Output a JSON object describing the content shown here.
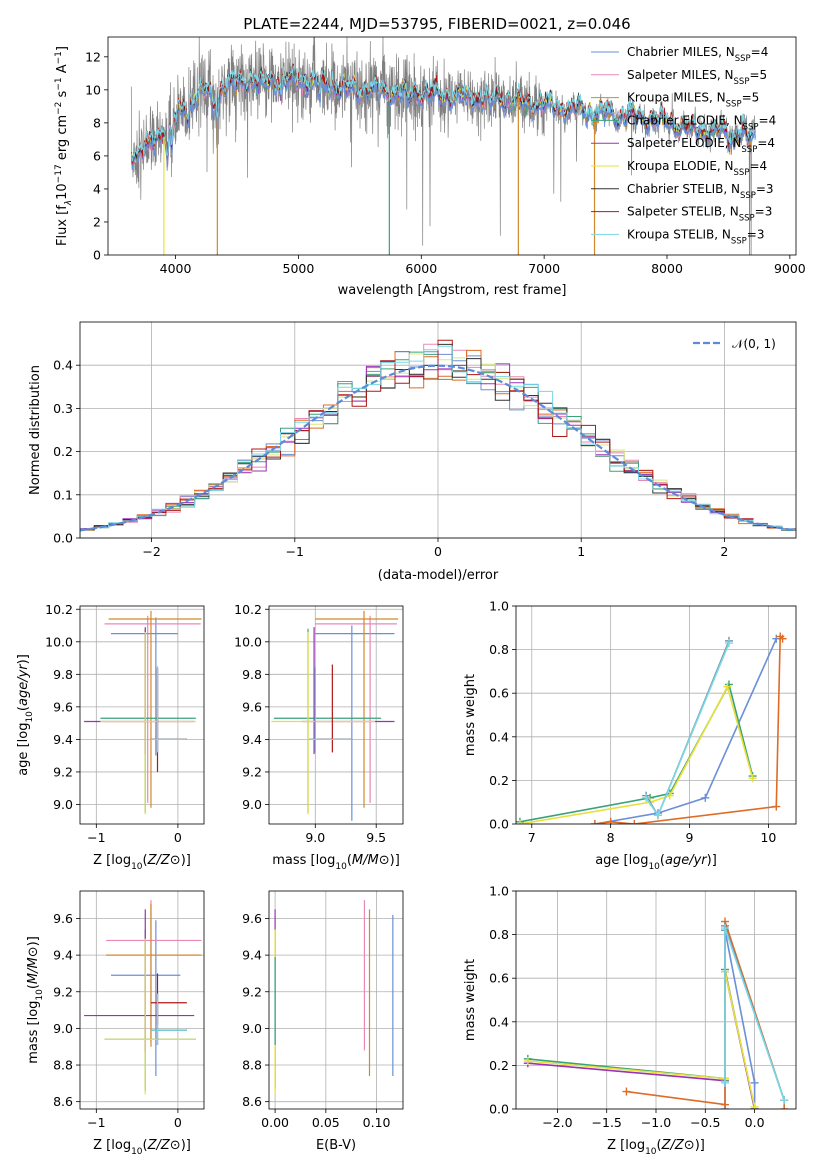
{
  "figure": {
    "title": "PLATE=2244, MJD=53795, FIBERID=0021, z=0.046"
  },
  "legend_spectrum": [
    {
      "label": "Chabrier MILES, N",
      "sub": "SSP",
      "suffix": "=4",
      "color": "#6b8fd8"
    },
    {
      "label": "Salpeter MILES, N",
      "sub": "SSP",
      "suffix": "=5",
      "color": "#e888b8"
    },
    {
      "label": "Kroupa MILES, N",
      "sub": "SSP",
      "suffix": "=5",
      "color": "#d08a2a"
    },
    {
      "label": "Chabrier ELODIE, N",
      "sub": "SSP",
      "suffix": "=4",
      "color": "#3aa37a"
    },
    {
      "label": "Salpeter ELODIE, N",
      "sub": "SSP",
      "suffix": "=4",
      "color": "#9932b8"
    },
    {
      "label": "Kroupa ELODIE, N",
      "sub": "SSP",
      "suffix": "=4",
      "color": "#e8e03a"
    },
    {
      "label": "Chabrier STELIB, N",
      "sub": "SSP",
      "suffix": "=3",
      "color": "#333333"
    },
    {
      "label": "Salpeter STELIB, N",
      "sub": "SSP",
      "suffix": "=3",
      "color": "#b01818"
    },
    {
      "label": "Kroupa STELIB, N",
      "sub": "SSP",
      "suffix": "=3",
      "color": "#78d8e8"
    }
  ],
  "legend_normal": {
    "label": "𝒩(0, 1)",
    "color": "#5b8bd9"
  },
  "chart_data": [
    {
      "id": "spectrum",
      "type": "line",
      "title": "PLATE=2244, MJD=53795, FIBERID=0021, z=0.046",
      "xlabel": "wavelength [Angstrom, rest frame]",
      "ylabel": "Flux [f",
      "ylabel_parts": [
        "Flux [f",
        "λ",
        "10",
        "−17",
        " erg cm",
        "−2",
        " s",
        "−1",
        " A",
        "−1",
        "]"
      ],
      "xlim": [
        3450,
        9050
      ],
      "ylim": [
        0,
        13.2
      ],
      "xticks": [
        4000,
        5000,
        6000,
        7000,
        8000,
        9000
      ],
      "xtick_labels": [
        "4000",
        "5000",
        "6000",
        "7000",
        "8000",
        "9000"
      ],
      "yticks": [
        0,
        2,
        4,
        6,
        8,
        10,
        12
      ],
      "ytick_labels": [
        "0",
        "2",
        "4",
        "6",
        "8",
        "10",
        "12"
      ],
      "grid": false,
      "legend": "top-right",
      "data_trend": {
        "x": [
          3650,
          3700,
          3800,
          3900,
          4000,
          4100,
          4200,
          4300,
          4400,
          4500,
          4600,
          4700,
          4800,
          4900,
          5000,
          5200,
          5400,
          5600,
          5800,
          6000,
          6200,
          6400,
          6600,
          6800,
          7000,
          7200,
          7400,
          7600,
          7800,
          8000,
          8200,
          8400,
          8600,
          8700
        ],
        "y": [
          6.2,
          6.1,
          6.6,
          7.6,
          8.3,
          9.1,
          9.9,
          9.8,
          10.2,
          10.4,
          10.6,
          10.3,
          10.6,
          10.5,
          10.6,
          10.4,
          10.0,
          10.0,
          9.8,
          9.8,
          9.6,
          9.5,
          9.5,
          9.2,
          9.1,
          8.9,
          8.6,
          8.5,
          8.3,
          8.1,
          7.6,
          7.5,
          7.4,
          7.2
        ]
      },
      "series_names": [
        "data",
        "Chabrier MILES",
        "Salpeter MILES",
        "Kroupa MILES",
        "Chabrier ELODIE",
        "Salpeter ELODIE",
        "Kroupa ELODIE",
        "Chabrier STELIB",
        "Salpeter STELIB",
        "Kroupa STELIB"
      ]
    },
    {
      "id": "residuals",
      "type": "step",
      "xlabel": "(data-model)/error",
      "ylabel": "Normed distribution",
      "xlim": [
        -2.5,
        2.5
      ],
      "ylim": [
        0,
        0.5
      ],
      "xticks": [
        -2,
        -1,
        0,
        1,
        2
      ],
      "xtick_labels": [
        "−2",
        "−1",
        "0",
        "1",
        "2"
      ],
      "yticks": [
        0.0,
        0.1,
        0.2,
        0.3,
        0.4
      ],
      "ytick_labels": [
        "0.0",
        "0.1",
        "0.2",
        "0.3",
        "0.4"
      ],
      "grid": true,
      "legend": "top-right",
      "bin_width": 0.1,
      "bins_start": -2.5,
      "normal_curve": {
        "mean": 0,
        "sigma": 1
      }
    },
    {
      "id": "age-vs-Z",
      "type": "errorbar",
      "xlabel": "Z [log10(Z/Z⊙)]",
      "ylabel": "age  [log10(age/yr)]",
      "xlim": [
        -1.2,
        0.32
      ],
      "ylim": [
        8.88,
        10.22
      ],
      "xticks": [
        -1,
        0
      ],
      "xtick_labels": [
        "−1",
        "0"
      ],
      "yticks": [
        9.0,
        9.2,
        9.4,
        9.6,
        9.8,
        10.0,
        10.2
      ],
      "ytick_labels": [
        "9.0",
        "9.2",
        "9.4",
        "9.6",
        "9.8",
        "10.0",
        "10.2"
      ],
      "grid": true,
      "points": [
        {
          "x": -0.27,
          "y": 10.05,
          "xerr": [
            0.55,
            0.27
          ],
          "yerr": [
            0.75,
            0.1
          ],
          "color": "#6b8fd8"
        },
        {
          "x": -0.37,
          "y": 10.11,
          "xerr": [
            0.53,
            0.65
          ],
          "yerr": [
            1.1,
            0.05
          ],
          "color": "#e888b8"
        },
        {
          "x": -0.33,
          "y": 10.14,
          "xerr": [
            0.52,
            0.62
          ],
          "yerr": [
            1.16,
            0.05
          ],
          "color": "#d08a2a"
        },
        {
          "x": -0.4,
          "y": 9.53,
          "xerr": [
            0.55,
            0.62
          ],
          "yerr": [
            0.58,
            0.55
          ],
          "color": "#3aa37a"
        },
        {
          "x": -0.4,
          "y": 9.51,
          "xerr": [
            0.75,
            0.6
          ],
          "yerr": [
            0.2,
            0.58
          ],
          "color": "#9932b8"
        },
        {
          "x": -0.4,
          "y": 9.51,
          "xerr": [
            0.55,
            0.62
          ],
          "yerr": [
            0.57,
            0.55
          ],
          "color": "#e8e03a"
        },
        {
          "x": -0.25,
          "y": 9.4,
          "xerr": [
            0.08,
            0.36
          ],
          "yerr": [
            0.08,
            0.44
          ],
          "color": "#333333"
        },
        {
          "x": -0.25,
          "y": 9.4,
          "xerr": [
            0.08,
            0.36
          ],
          "yerr": [
            0.2,
            0.44
          ],
          "color": "#b01818"
        },
        {
          "x": -0.25,
          "y": 9.4,
          "xerr": [
            0.08,
            0.36
          ],
          "yerr": [
            0.08,
            0.45
          ],
          "color": "#78d8e8"
        }
      ]
    },
    {
      "id": "age-vs-mass",
      "type": "errorbar",
      "xlabel": "mass [log10(M/M⊙)]",
      "ylabel": "",
      "xlim": [
        8.62,
        9.72
      ],
      "ylim": [
        8.88,
        10.22
      ],
      "xticks": [
        9.0,
        9.5
      ],
      "xtick_labels": [
        "9.0",
        "9.5"
      ],
      "yticks": [
        9.0,
        9.2,
        9.4,
        9.6,
        9.8,
        10.0,
        10.2
      ],
      "ytick_labels": [
        "9.0",
        "9.2",
        "9.4",
        "9.6",
        "9.8",
        "10.0",
        "10.2"
      ],
      "grid": true,
      "points": [
        {
          "x": 9.3,
          "y": 10.05,
          "xerr": [
            0.3,
            0.35
          ],
          "yerr": [
            1.15,
            0.05
          ],
          "color": "#6b8fd8"
        },
        {
          "x": 9.45,
          "y": 10.11,
          "xerr": [
            0.45,
            0.22
          ],
          "yerr": [
            1.1,
            0.05
          ],
          "color": "#e888b8"
        },
        {
          "x": 9.4,
          "y": 10.14,
          "xerr": [
            0.4,
            0.28
          ],
          "yerr": [
            1.16,
            0.05
          ],
          "color": "#d08a2a"
        },
        {
          "x": 8.94,
          "y": 9.53,
          "xerr": [
            0.28,
            0.6
          ],
          "yerr": [
            0.58,
            0.55
          ],
          "color": "#3aa37a"
        },
        {
          "x": 8.99,
          "y": 9.51,
          "xerr": [
            0.1,
            0.66
          ],
          "yerr": [
            0.2,
            0.58
          ],
          "color": "#9932b8"
        },
        {
          "x": 8.94,
          "y": 9.51,
          "xerr": [
            0.3,
            0.55
          ],
          "yerr": [
            0.57,
            0.55
          ],
          "color": "#e8e03a"
        },
        {
          "x": 9.0,
          "y": 9.4,
          "xerr": [
            0.05,
            0.3
          ],
          "yerr": [
            0.08,
            0.44
          ],
          "color": "#333333"
        },
        {
          "x": 9.14,
          "y": 9.4,
          "xerr": [
            0.12,
            0.16
          ],
          "yerr": [
            0.08,
            0.46
          ],
          "color": "#b01818"
        },
        {
          "x": 9.0,
          "y": 9.4,
          "xerr": [
            0.05,
            0.3
          ],
          "yerr": [
            0.08,
            0.45
          ],
          "color": "#78d8e8"
        }
      ]
    },
    {
      "id": "mass-weight-vs-age",
      "type": "line",
      "xlabel": "age  [log10(age/yr)]",
      "ylabel": "mass weight",
      "xlim": [
        6.8,
        10.35
      ],
      "ylim": [
        0,
        1.0
      ],
      "xticks": [
        7,
        8,
        9,
        10
      ],
      "xtick_labels": [
        "7",
        "8",
        "9",
        "10"
      ],
      "yticks": [
        0.0,
        0.2,
        0.4,
        0.6,
        0.8,
        1.0
      ],
      "ytick_labels": [
        "0.0",
        "0.2",
        "0.4",
        "0.6",
        "0.8",
        "1.0"
      ],
      "grid": true,
      "series": [
        {
          "color": "#6b8fd8",
          "x": [
            7.8,
            8.6,
            9.2,
            10.1
          ],
          "y": [
            0.0,
            0.05,
            0.12,
            0.85
          ]
        },
        {
          "color": "#e06b25",
          "x": [
            7.8,
            8.0,
            8.3,
            10.1,
            10.15,
            10.18
          ],
          "y": [
            0.0,
            0.01,
            0.0,
            0.08,
            0.86,
            0.85
          ]
        },
        {
          "color": "#3aa37a",
          "x": [
            6.85,
            8.5,
            8.75,
            9.5,
            9.8
          ],
          "y": [
            0.01,
            0.12,
            0.14,
            0.64,
            0.22
          ]
        },
        {
          "color": "#e8e03a",
          "x": [
            6.85,
            8.5,
            8.75,
            9.48,
            9.8
          ],
          "y": [
            0.0,
            0.1,
            0.13,
            0.63,
            0.21
          ]
        },
        {
          "color": "#7a8c9a",
          "x": [
            8.45,
            8.6,
            9.5
          ],
          "y": [
            0.13,
            0.04,
            0.84
          ]
        },
        {
          "color": "#78d8e8",
          "x": [
            8.45,
            8.6,
            9.5
          ],
          "y": [
            0.12,
            0.04,
            0.83
          ]
        }
      ]
    },
    {
      "id": "mass-vs-Z",
      "type": "errorbar",
      "xlabel": "Z [log10(Z/Z⊙)]",
      "ylabel": "mass [log10(M/M⊙)]",
      "xlim": [
        -1.2,
        0.32
      ],
      "ylim": [
        8.56,
        9.75
      ],
      "xticks": [
        -1,
        0
      ],
      "xtick_labels": [
        "−1",
        "0"
      ],
      "yticks": [
        8.6,
        8.8,
        9.0,
        9.2,
        9.4,
        9.6
      ],
      "ytick_labels": [
        "8.6",
        "8.8",
        "9.0",
        "9.2",
        "9.4",
        "9.6"
      ],
      "grid": true,
      "points": [
        {
          "x": -0.27,
          "y": 9.29,
          "xerr": [
            0.55,
            0.3
          ],
          "yerr": [
            0.55,
            0.3
          ],
          "color": "#6b8fd8"
        },
        {
          "x": -0.33,
          "y": 9.48,
          "xerr": [
            0.55,
            0.62
          ],
          "yerr": [
            0.55,
            0.22
          ],
          "color": "#e888b8"
        },
        {
          "x": -0.33,
          "y": 9.4,
          "xerr": [
            0.55,
            0.62
          ],
          "yerr": [
            0.5,
            0.28
          ],
          "color": "#d08a2a"
        },
        {
          "x": -0.4,
          "y": 8.94,
          "xerr": [
            0.5,
            0.62
          ],
          "yerr": [
            0.28,
            0.6
          ],
          "color": "#3aa37a"
        },
        {
          "x": -0.4,
          "y": 9.07,
          "xerr": [
            0.75,
            0.6
          ],
          "yerr": [
            0.2,
            0.58
          ],
          "color": "#9932b8"
        },
        {
          "x": -0.4,
          "y": 8.94,
          "xerr": [
            0.5,
            0.62
          ],
          "yerr": [
            0.3,
            0.55
          ],
          "color": "#e8e03a"
        },
        {
          "x": -0.25,
          "y": 8.99,
          "xerr": [
            0.08,
            0.36
          ],
          "yerr": [
            0.08,
            0.2
          ],
          "color": "#333333"
        },
        {
          "x": -0.25,
          "y": 9.14,
          "xerr": [
            0.08,
            0.36
          ],
          "yerr": [
            0.12,
            0.16
          ],
          "color": "#b01818"
        },
        {
          "x": -0.25,
          "y": 8.99,
          "xerr": [
            0.08,
            0.36
          ],
          "yerr": [
            0.08,
            0.2
          ],
          "color": "#78d8e8"
        }
      ]
    },
    {
      "id": "mass-vs-ebv",
      "type": "errorbar",
      "xlabel": "E(B-V)",
      "ylabel": "",
      "xlim": [
        -0.006,
        0.126
      ],
      "ylim": [
        8.56,
        9.75
      ],
      "xticks": [
        0.0,
        0.05,
        0.1
      ],
      "xtick_labels": [
        "0.00",
        "0.05",
        "0.10"
      ],
      "yticks": [
        8.6,
        8.8,
        9.0,
        9.2,
        9.4,
        9.6
      ],
      "ytick_labels": [
        "8.6",
        "8.8",
        "9.0",
        "9.2",
        "9.4",
        "9.6"
      ],
      "grid": true,
      "points": [
        {
          "x": 0.116,
          "y": 9.29,
          "xerr": [
            0,
            0
          ],
          "yerr": [
            0.55,
            0.33
          ],
          "color": "#6b8fd8"
        },
        {
          "x": 0.088,
          "y": 9.48,
          "xerr": [
            0,
            0
          ],
          "yerr": [
            0.6,
            0.22
          ],
          "color": "#e888b8"
        },
        {
          "x": 0.093,
          "y": 9.4,
          "xerr": [
            0,
            0
          ],
          "yerr": [
            0.66,
            0.25
          ],
          "color": "#d08a2a"
        },
        {
          "x": 0.0,
          "y": 9.07,
          "xerr": [
            0,
            0
          ],
          "yerr": [
            0.4,
            0.58
          ],
          "color": "#9932b8"
        },
        {
          "x": 0.0,
          "y": 8.94,
          "xerr": [
            0,
            0
          ],
          "yerr": [
            0.3,
            0.6
          ],
          "color": "#e8e03a"
        },
        {
          "x": 0.0,
          "y": 8.99,
          "xerr": [
            0,
            0
          ],
          "yerr": [
            0.08,
            0.4
          ],
          "color": "#3aa37a"
        }
      ]
    },
    {
      "id": "mass-weight-vs-Z",
      "type": "line",
      "xlabel": "Z [log10(Z/Z⊙)]",
      "ylabel": "mass weight",
      "xlim": [
        -2.42,
        0.42
      ],
      "ylim": [
        0,
        1.0
      ],
      "xticks": [
        -2.0,
        -1.5,
        -1.0,
        -0.5,
        0.0
      ],
      "xtick_labels": [
        "−2.0",
        "−1.5",
        "−1.0",
        "−0.5",
        "0.0"
      ],
      "yticks": [
        0.0,
        0.2,
        0.4,
        0.6,
        0.8,
        1.0
      ],
      "ytick_labels": [
        "0.0",
        "0.2",
        "0.4",
        "0.6",
        "0.8",
        "1.0"
      ],
      "grid": true,
      "series": [
        {
          "color": "#6b8fd8",
          "x": [
            -0.3,
            -0.3,
            0.0,
            0.0
          ],
          "y": [
            0.0,
            0.82,
            0.12,
            0.0
          ]
        },
        {
          "color": "#e06b25",
          "x": [
            -1.3,
            -0.3,
            -0.3,
            0.3,
            0.3
          ],
          "y": [
            0.08,
            0.02,
            0.86,
            0.04,
            0.0
          ]
        },
        {
          "color": "#3aa37a",
          "x": [
            -2.3,
            -0.3,
            -0.3,
            0.0
          ],
          "y": [
            0.23,
            0.14,
            0.64,
            0.0
          ]
        },
        {
          "color": "#9932b8",
          "x": [
            -2.3,
            -0.3,
            -0.3,
            0.0
          ],
          "y": [
            0.21,
            0.13,
            0.63,
            0.0
          ]
        },
        {
          "color": "#e8e03a",
          "x": [
            -2.3,
            -0.3,
            -0.3,
            0.0
          ],
          "y": [
            0.22,
            0.14,
            0.63,
            0.01
          ]
        },
        {
          "color": "#7a8c9a",
          "x": [
            -0.3,
            -0.3,
            0.3
          ],
          "y": [
            0.13,
            0.84,
            0.04
          ]
        },
        {
          "color": "#78d8e8",
          "x": [
            -0.3,
            -0.3,
            0.3
          ],
          "y": [
            0.12,
            0.83,
            0.04
          ]
        }
      ]
    }
  ]
}
